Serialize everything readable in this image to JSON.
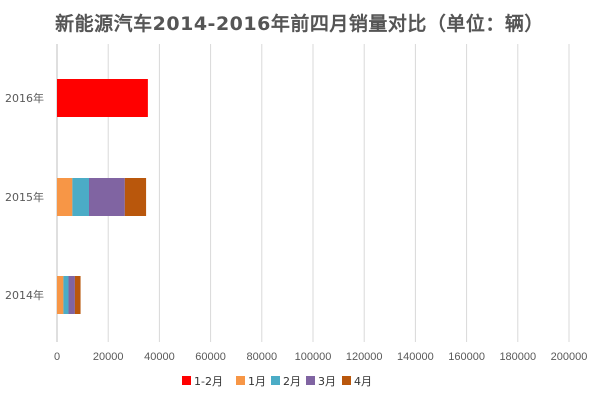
{
  "chart_data": {
    "type": "bar",
    "orientation": "horizontal",
    "stacked": true,
    "title": "新能源汽车2014-2016年前四月销量对比（单位：辆）",
    "categories": [
      "2016年",
      "2015年",
      "2014年"
    ],
    "series": [
      {
        "name": "1-2月",
        "color": "#ff0000",
        "values": [
          35500,
          0,
          0
        ]
      },
      {
        "name": "1月",
        "color": "#f79646",
        "values": [
          0,
          6000,
          2500
        ]
      },
      {
        "name": "2月",
        "color": "#4bacc6",
        "values": [
          0,
          6500,
          2000
        ]
      },
      {
        "name": "3月",
        "color": "#8064a2",
        "values": [
          0,
          14000,
          2500
        ]
      },
      {
        "name": "4月",
        "color": "#b9570c",
        "values": [
          0,
          8300,
          2200
        ]
      }
    ],
    "xlim": [
      0,
      200000
    ],
    "x_ticks": [
      "0",
      "20000",
      "40000",
      "60000",
      "80000",
      "100000",
      "120000",
      "140000",
      "160000",
      "180000",
      "200000"
    ],
    "grid": true,
    "legend_position": "bottom"
  }
}
